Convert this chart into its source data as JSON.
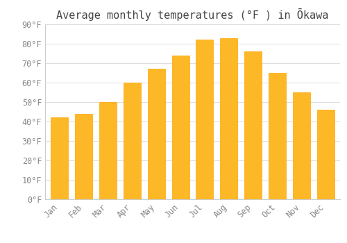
{
  "title": "Average monthly temperatures (°F ) in Ōkawa",
  "months": [
    "Jan",
    "Feb",
    "Mar",
    "Apr",
    "May",
    "Jun",
    "Jul",
    "Aug",
    "Sep",
    "Oct",
    "Nov",
    "Dec"
  ],
  "values": [
    42,
    44,
    50,
    60,
    67,
    74,
    82,
    83,
    76,
    65,
    55,
    46
  ],
  "bar_color": "#FDB827",
  "bar_edge_color": "#FFA500",
  "background_color": "#FFFFFF",
  "grid_color": "#DDDDDD",
  "ylim": [
    0,
    90
  ],
  "yticks": [
    0,
    10,
    20,
    30,
    40,
    50,
    60,
    70,
    80,
    90
  ],
  "title_fontsize": 11,
  "tick_fontsize": 8.5,
  "title_color": "#444444",
  "tick_color": "#888888"
}
